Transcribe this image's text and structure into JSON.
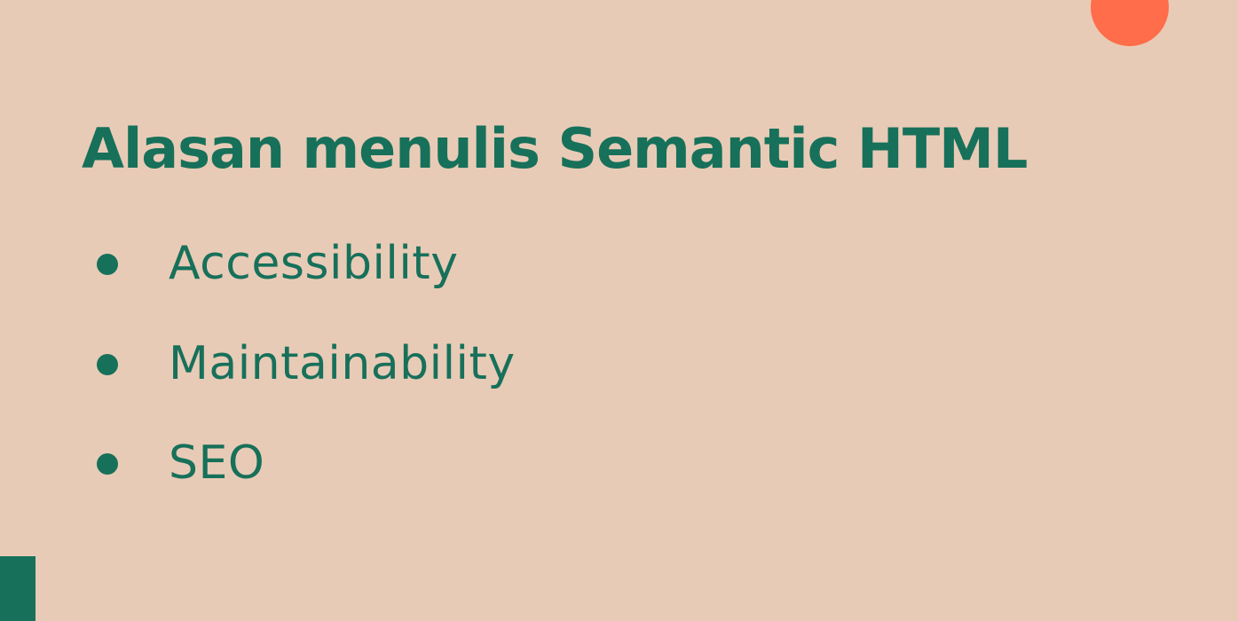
{
  "colors": {
    "background": "#e8cbb6",
    "primary": "#17705a",
    "accent": "#ff6d4a"
  },
  "slide": {
    "title": "Alasan menulis Semantic HTML",
    "bullets": [
      {
        "label": "Accessibility"
      },
      {
        "label": "Maintainability"
      },
      {
        "label": "SEO"
      }
    ]
  }
}
